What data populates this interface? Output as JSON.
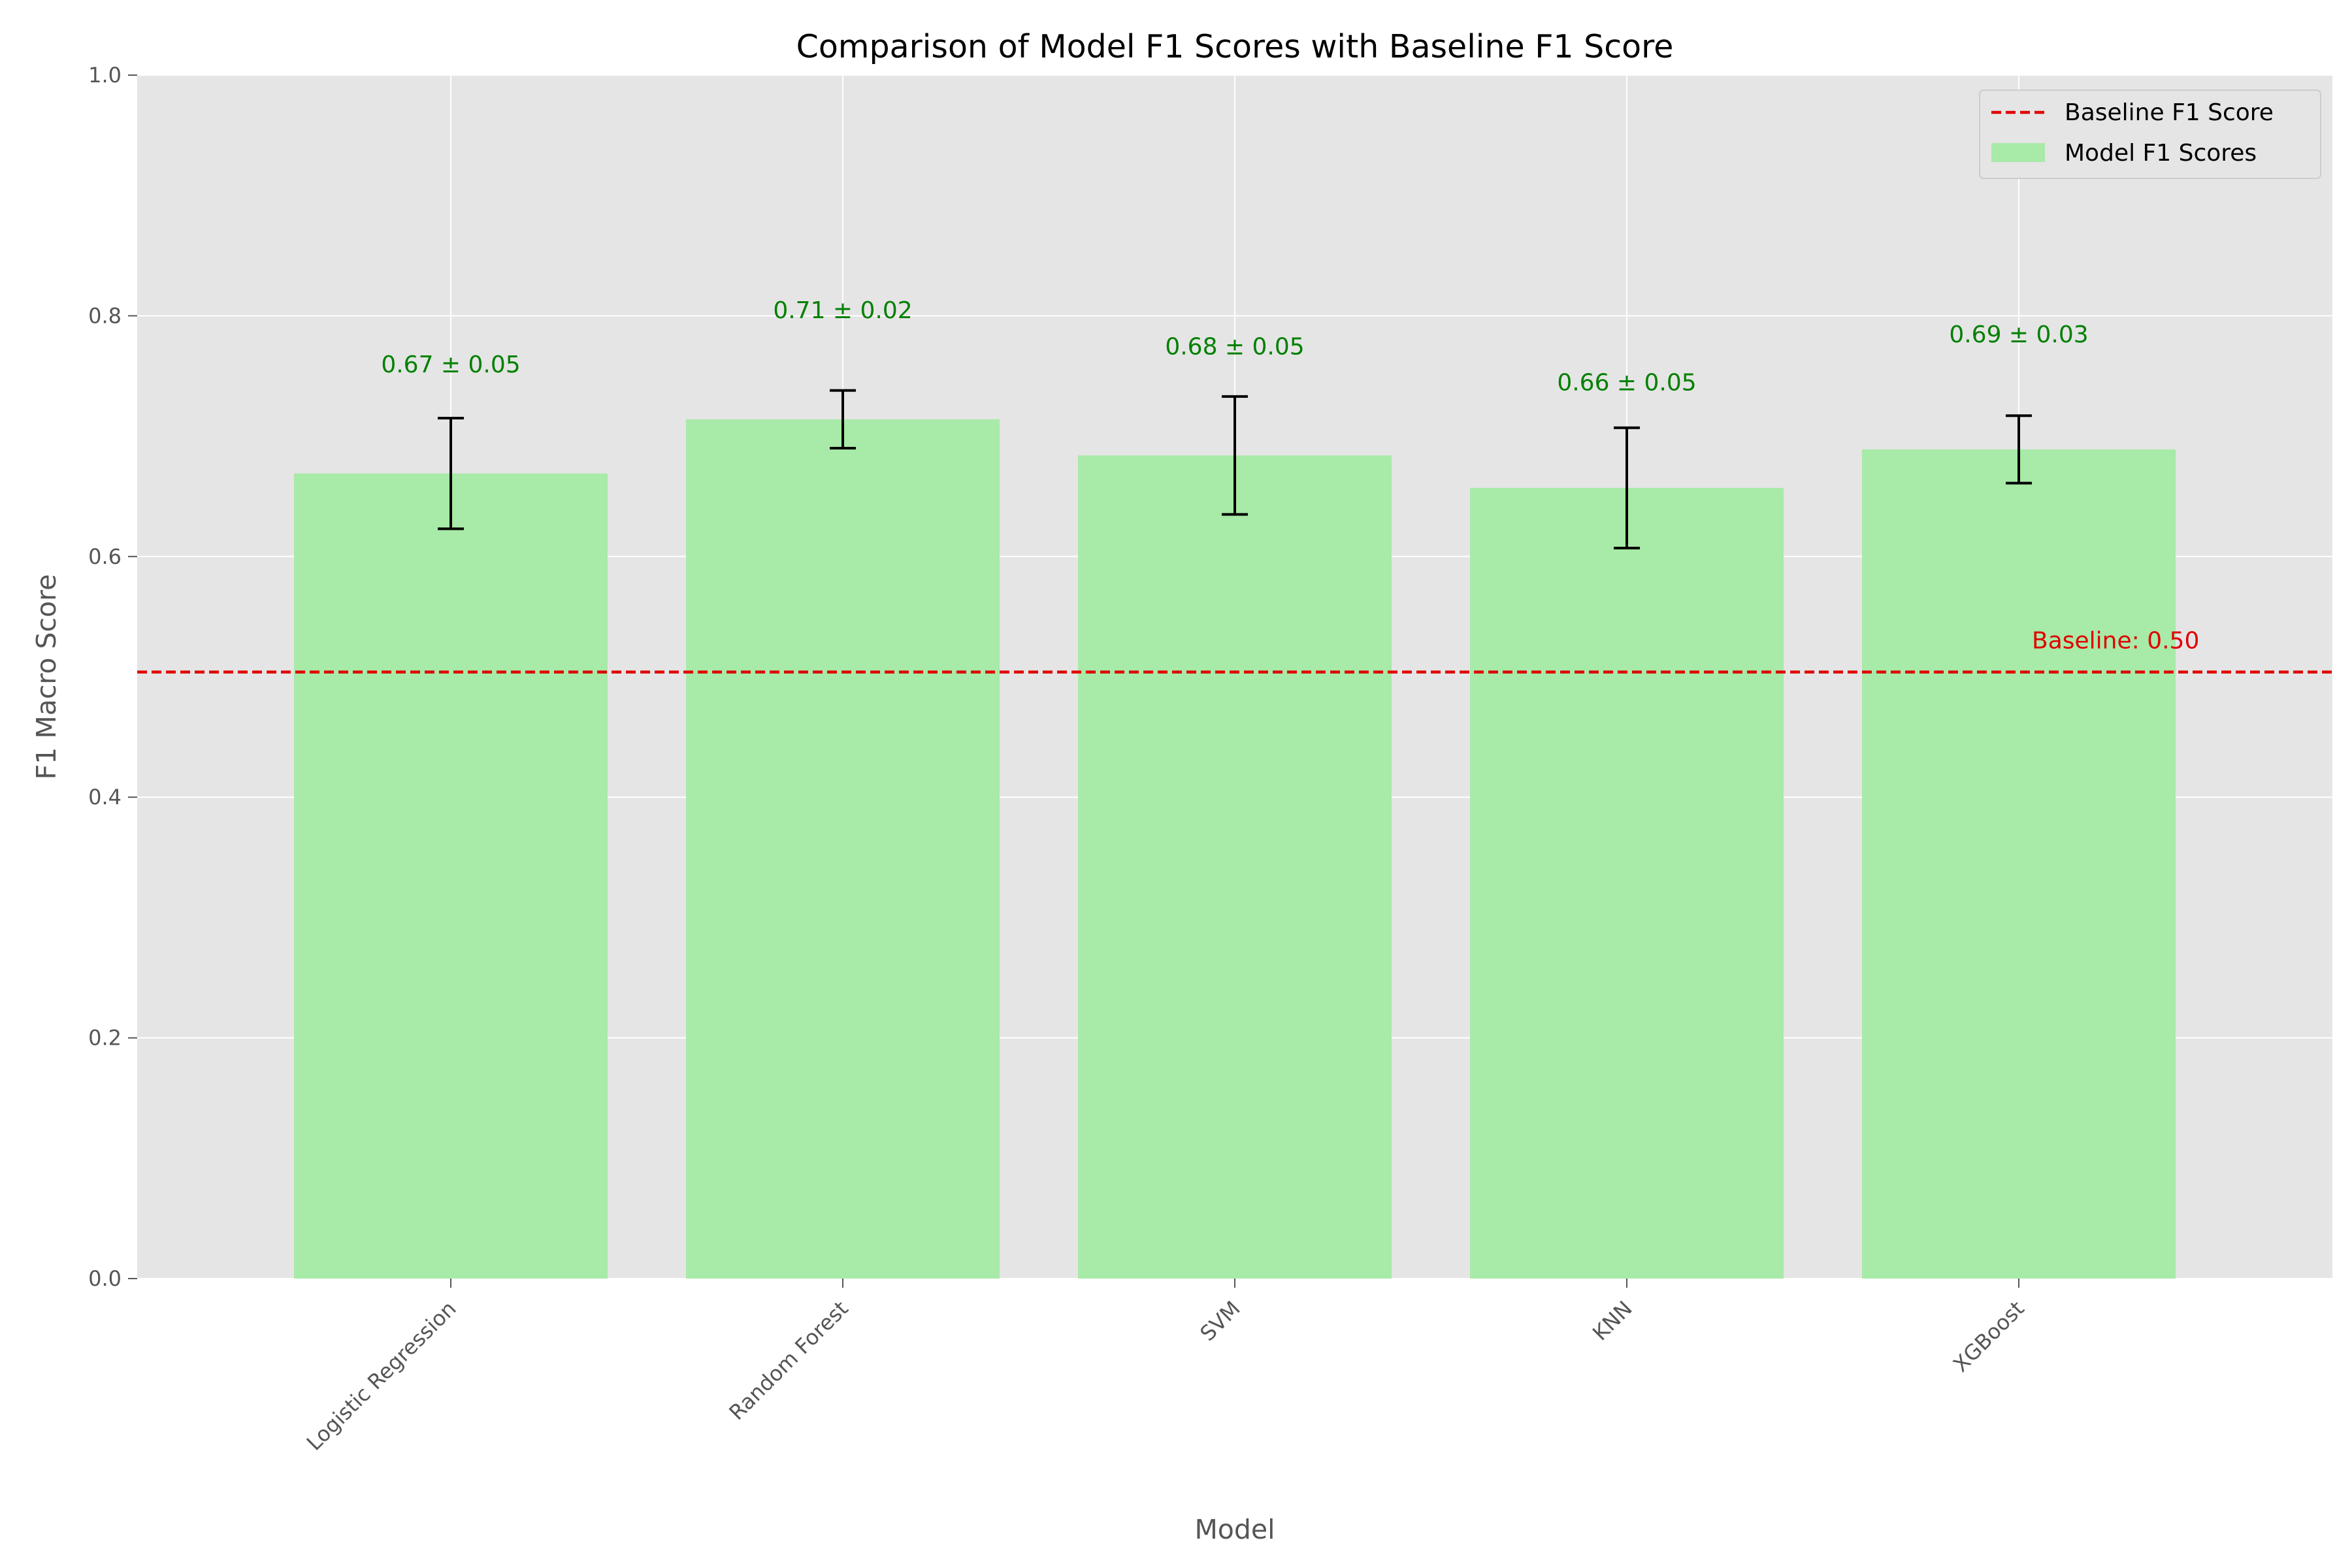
{
  "chart_data": {
    "type": "bar",
    "title": "Comparison of Model F1 Scores with Baseline F1 Score",
    "xlabel": "Model",
    "ylabel": "F1 Macro Score",
    "ylim": [
      0,
      1.0
    ],
    "yticks": [
      "0.0",
      "0.2",
      "0.4",
      "0.6",
      "0.8",
      "1.0"
    ],
    "ytick_values": [
      0,
      0.2,
      0.4,
      0.6,
      0.8,
      1.0
    ],
    "categories": [
      "Logistic Regression",
      "Random Forest",
      "SVM",
      "KNN",
      "XGBoost"
    ],
    "series": [
      {
        "name": "Model F1 Scores",
        "values": [
          0.669,
          0.714,
          0.684,
          0.657,
          0.689
        ],
        "errors": [
          0.046,
          0.024,
          0.049,
          0.05,
          0.028
        ],
        "labels": [
          "0.67 ± 0.05",
          "0.71 ± 0.02",
          "0.68 ± 0.05",
          "0.66 ± 0.05",
          "0.69 ± 0.03"
        ],
        "label_y": [
          0.76,
          0.805,
          0.775,
          0.745,
          0.785
        ],
        "color": "#a8eaa7"
      }
    ],
    "baseline": {
      "name": "Baseline F1 Score",
      "value": 0.504,
      "label": "Baseline: 0.50",
      "color": "#e00000"
    },
    "legend": {
      "position": "top-right",
      "entries": [
        "Baseline F1 Score",
        "Model F1 Scores"
      ]
    },
    "grid": true,
    "colors": {
      "plot_background": "#e5e5e5",
      "grid": "#ffffff",
      "bar_label": "#008000",
      "error_bar": "#000000"
    }
  }
}
